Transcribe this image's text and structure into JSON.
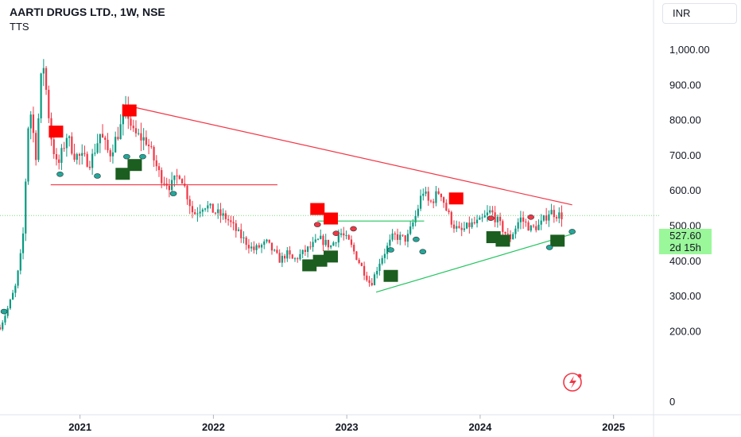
{
  "header": {
    "symbol_title": "AARTI DRUGS LTD., 1W, NSE",
    "indicator_name": "TTS",
    "currency": "INR"
  },
  "price_badge": {
    "last_price": "527.60",
    "countdown": "2d 15h"
  },
  "colors": {
    "up": "#089981",
    "down": "#f23645",
    "resistance": "#f23645",
    "support": "#22c55e",
    "buy_box": "#1b5e20",
    "sell_box": "#ff0000",
    "last_price_line": "#7ed87e",
    "badge": "#9af79a"
  },
  "chart_data": {
    "type": "candlestick",
    "title": "AARTI DRUGS LTD., 1W, NSE",
    "y_axis": {
      "ticks": [
        0,
        200,
        300,
        400,
        500,
        600,
        700,
        800,
        900,
        1000
      ],
      "tick_labels": [
        "0",
        "200.00",
        "300.00",
        "400.00",
        "500.00",
        "600.00",
        "700.00",
        "800.00",
        "900.00",
        "1,000.00"
      ],
      "range": [
        0,
        1100
      ]
    },
    "x_axis": {
      "tick_labels": [
        "2021",
        "2022",
        "2023",
        "2024",
        "2025"
      ],
      "ticks": [
        2021.0,
        2022.0,
        2023.0,
        2024.0,
        2025.0
      ],
      "range": [
        2020.4,
        2025.3
      ]
    },
    "last_price": 527.6,
    "price_keyframes": [
      [
        2020.4,
        210
      ],
      [
        2020.45,
        255
      ],
      [
        2020.52,
        330
      ],
      [
        2020.57,
        450
      ],
      [
        2020.62,
        850
      ],
      [
        2020.67,
        700
      ],
      [
        2020.72,
        980
      ],
      [
        2020.78,
        760
      ],
      [
        2020.83,
        660
      ],
      [
        2020.9,
        755
      ],
      [
        2020.96,
        700
      ],
      [
        2021.08,
        680
      ],
      [
        2021.15,
        760
      ],
      [
        2021.22,
        700
      ],
      [
        2021.3,
        775
      ],
      [
        2021.35,
        830
      ],
      [
        2021.4,
        760
      ],
      [
        2021.5,
        740
      ],
      [
        2021.6,
        640
      ],
      [
        2021.68,
        610
      ],
      [
        2021.75,
        650
      ],
      [
        2021.85,
        530
      ],
      [
        2021.93,
        560
      ],
      [
        2022.0,
        540
      ],
      [
        2022.1,
        520
      ],
      [
        2022.2,
        470
      ],
      [
        2022.3,
        430
      ],
      [
        2022.4,
        450
      ],
      [
        2022.5,
        400
      ],
      [
        2022.55,
        420
      ],
      [
        2022.6,
        400
      ],
      [
        2022.7,
        430
      ],
      [
        2022.8,
        460
      ],
      [
        2022.88,
        440
      ],
      [
        2022.95,
        480
      ],
      [
        2023.02,
        450
      ],
      [
        2023.1,
        390
      ],
      [
        2023.18,
        330
      ],
      [
        2023.25,
        400
      ],
      [
        2023.35,
        470
      ],
      [
        2023.45,
        460
      ],
      [
        2023.52,
        530
      ],
      [
        2023.57,
        600
      ],
      [
        2023.62,
        560
      ],
      [
        2023.7,
        600
      ],
      [
        2023.75,
        540
      ],
      [
        2023.8,
        500
      ],
      [
        2023.85,
        480
      ],
      [
        2023.92,
        500
      ],
      [
        2024.0,
        510
      ],
      [
        2024.08,
        540
      ],
      [
        2024.15,
        500
      ],
      [
        2024.22,
        460
      ],
      [
        2024.3,
        520
      ],
      [
        2024.38,
        490
      ],
      [
        2024.45,
        500
      ],
      [
        2024.52,
        540
      ],
      [
        2024.58,
        530
      ],
      [
        2024.63,
        525
      ]
    ],
    "trendlines": [
      {
        "name": "descending-resistance",
        "from": [
          2021.35,
          840
        ],
        "to": [
          2024.69,
          558
        ]
      },
      {
        "name": "horizontal-resistance",
        "from": [
          2020.78,
          615
        ],
        "to": [
          2022.48,
          615
        ]
      },
      {
        "name": "ascending-support",
        "from": [
          2023.22,
          310
        ],
        "to": [
          2024.69,
          475
        ]
      },
      {
        "name": "horizontal-level",
        "from": [
          2022.78,
          512
        ],
        "to": [
          2023.58,
          512
        ]
      }
    ],
    "sell_signals": [
      {
        "x": 2020.82,
        "y": 765
      },
      {
        "x": 2021.37,
        "y": 825
      },
      {
        "x": 2022.78,
        "y": 545
      },
      {
        "x": 2022.88,
        "y": 518
      },
      {
        "x": 2023.82,
        "y": 575
      }
    ],
    "buy_signals": [
      {
        "x": 2021.32,
        "y": 645
      },
      {
        "x": 2021.41,
        "y": 670
      },
      {
        "x": 2022.72,
        "y": 385
      },
      {
        "x": 2022.8,
        "y": 398
      },
      {
        "x": 2022.88,
        "y": 410
      },
      {
        "x": 2023.33,
        "y": 355
      },
      {
        "x": 2024.1,
        "y": 465
      },
      {
        "x": 2024.17,
        "y": 455
      },
      {
        "x": 2024.58,
        "y": 455
      }
    ],
    "marker_dots": [
      {
        "x": 2020.85,
        "y": 645,
        "kind": "low"
      },
      {
        "x": 2021.35,
        "y": 695,
        "kind": "low"
      },
      {
        "x": 2021.47,
        "y": 695,
        "kind": "low"
      },
      {
        "x": 2021.13,
        "y": 640,
        "kind": "low"
      },
      {
        "x": 2021.7,
        "y": 590,
        "kind": "low"
      },
      {
        "x": 2023.05,
        "y": 490,
        "kind": "high"
      },
      {
        "x": 2022.78,
        "y": 502,
        "kind": "high"
      },
      {
        "x": 2022.92,
        "y": 477,
        "kind": "high"
      },
      {
        "x": 2023.33,
        "y": 430,
        "kind": "low"
      },
      {
        "x": 2023.52,
        "y": 460,
        "kind": "low"
      },
      {
        "x": 2023.57,
        "y": 425,
        "kind": "low"
      },
      {
        "x": 2024.08,
        "y": 520,
        "kind": "high"
      },
      {
        "x": 2024.38,
        "y": 523,
        "kind": "high"
      },
      {
        "x": 2024.52,
        "y": 437,
        "kind": "low"
      },
      {
        "x": 2024.69,
        "y": 482,
        "kind": "low"
      },
      {
        "x": 2020.43,
        "y": 255,
        "kind": "low"
      }
    ]
  }
}
